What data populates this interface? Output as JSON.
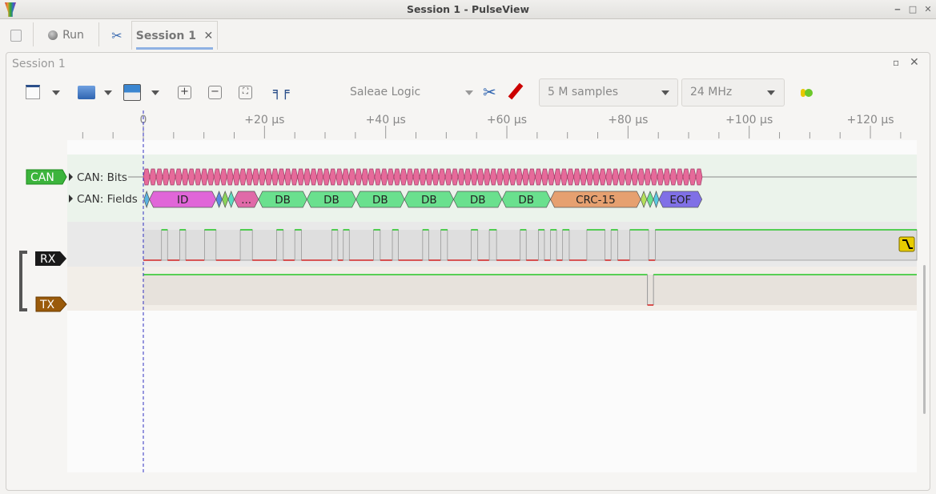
{
  "window": {
    "title": "Session 1 - PulseView"
  },
  "tabbar": {
    "run_label": "Run",
    "session_tab_label": "Session 1"
  },
  "session": {
    "title": "Session 1"
  },
  "toolbar": {
    "device": "Saleae Logic",
    "samples": "5 M samples",
    "samplerate": "24 MHz"
  },
  "ruler": {
    "unit": "µs",
    "labels": [
      {
        "t": 0,
        "text": "0"
      },
      {
        "t": 20,
        "text": "+20 µs"
      },
      {
        "t": 40,
        "text": "+40 µs"
      },
      {
        "t": 60,
        "text": "+60 µs"
      },
      {
        "t": 80,
        "text": "+80 µs"
      },
      {
        "t": 100,
        "text": "+100 µs"
      },
      {
        "t": 120,
        "text": "+120 µs"
      }
    ]
  },
  "decoder": {
    "name": "CAN",
    "color": "#3cb43c",
    "rows": [
      {
        "label": "CAN: Bits"
      },
      {
        "label": "CAN: Fields"
      }
    ],
    "bits_color": "#e66a9a",
    "fields": [
      {
        "t0": 0.1,
        "t1": 1.0,
        "text": "",
        "color": "#5ab4e0"
      },
      {
        "t0": 1.0,
        "t1": 12.0,
        "text": "ID",
        "color": "#e066d8"
      },
      {
        "t0": 12.0,
        "t1": 13.0,
        "text": "",
        "color": "#5a8ae0"
      },
      {
        "t0": 13.0,
        "t1": 14.0,
        "text": "",
        "color": "#8ad45a"
      },
      {
        "t0": 14.0,
        "t1": 15.0,
        "text": "",
        "color": "#5adcc0"
      },
      {
        "t0": 15.0,
        "t1": 19.0,
        "text": "...",
        "color": "#e06aa8"
      },
      {
        "t0": 19.0,
        "t1": 27.0,
        "text": "DB",
        "color": "#6ae08e"
      },
      {
        "t0": 27.0,
        "t1": 35.1,
        "text": "DB",
        "color": "#6ae08e"
      },
      {
        "t0": 35.1,
        "t1": 43.1,
        "text": "DB",
        "color": "#6ae08e"
      },
      {
        "t0": 43.1,
        "t1": 51.2,
        "text": "DB",
        "color": "#6ae08e"
      },
      {
        "t0": 51.2,
        "t1": 59.2,
        "text": "DB",
        "color": "#6ae08e"
      },
      {
        "t0": 59.2,
        "t1": 67.2,
        "text": "DB",
        "color": "#6ae08e"
      },
      {
        "t0": 67.2,
        "t1": 82.1,
        "text": "CRC-15",
        "color": "#e6a070"
      },
      {
        "t0": 82.1,
        "t1": 83.1,
        "text": "",
        "color": "#b4e05a"
      },
      {
        "t0": 83.1,
        "t1": 84.2,
        "text": "",
        "color": "#6ae08e"
      },
      {
        "t0": 84.2,
        "t1": 85.1,
        "text": "",
        "color": "#5ac8e0"
      },
      {
        "t0": 85.1,
        "t1": 92.2,
        "text": "EOF",
        "color": "#8070e6"
      }
    ]
  },
  "channels": [
    {
      "name": "RX",
      "color": "#1a1a1a",
      "high_pulses": [
        [
          3.0,
          4.0
        ],
        [
          6.0,
          7.0
        ],
        [
          10.1,
          12.0
        ],
        [
          16.0,
          18.0
        ],
        [
          22.0,
          23.1
        ],
        [
          25.0,
          26.1
        ],
        [
          31.1,
          32.1
        ],
        [
          33.0,
          34.0
        ],
        [
          38.0,
          39.1
        ],
        [
          41.1,
          42.1
        ],
        [
          46.1,
          47.1
        ],
        [
          49.1,
          50.2
        ],
        [
          54.1,
          55.2
        ],
        [
          57.1,
          58.3
        ],
        [
          62.2,
          63.2
        ],
        [
          65.2,
          66.2
        ],
        [
          67.2,
          68.2
        ],
        [
          69.2,
          70.3
        ],
        [
          73.2,
          76.2
        ],
        [
          77.2,
          78.3
        ],
        [
          80.3,
          83.4
        ],
        [
          84.5,
          null
        ]
      ],
      "trigger": "falling-edge"
    },
    {
      "name": "TX",
      "color": "#9a5a0a",
      "low_pulses": [
        [
          83.2,
          84.2
        ]
      ]
    }
  ],
  "colors": {
    "high": "#00c000",
    "low": "#d00000",
    "cursor": "#3030c0"
  }
}
